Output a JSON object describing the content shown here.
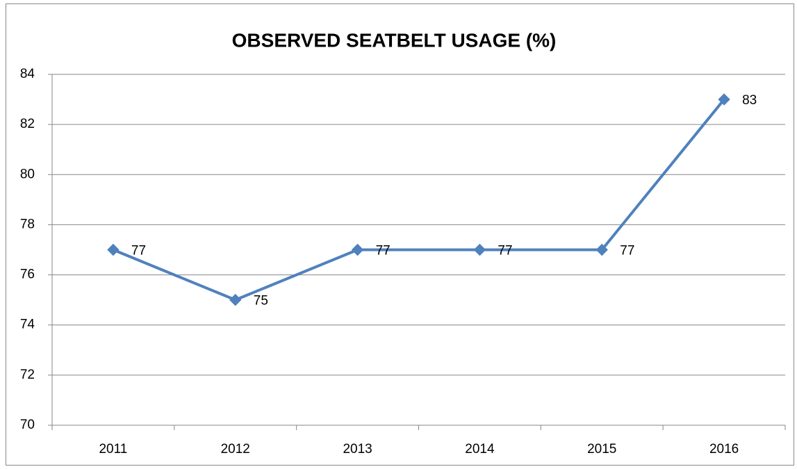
{
  "chart_data": {
    "type": "line",
    "title": "OBSERVED SEATBELT USAGE (%)",
    "categories": [
      "2011",
      "2012",
      "2013",
      "2014",
      "2015",
      "2016"
    ],
    "series": [
      {
        "name": "Observed seatbelt usage",
        "color": "#4f81bd",
        "values": [
          77,
          75,
          77,
          77,
          77,
          83
        ]
      }
    ],
    "ylim": [
      70,
      84
    ],
    "yticks": [
      70,
      72,
      74,
      76,
      78,
      80,
      82,
      84
    ],
    "grid": true,
    "data_labels": true
  }
}
